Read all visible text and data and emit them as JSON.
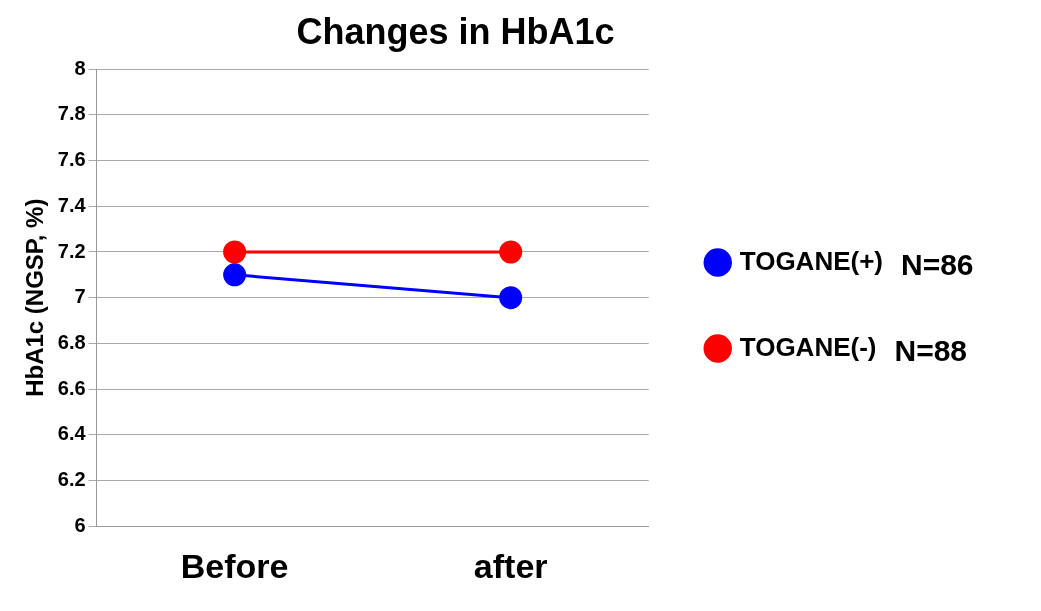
{
  "chart_data": {
    "type": "line",
    "title": "Changes in HbA1c",
    "ylabel": "HbA1c (NGSP, %)",
    "categories": [
      "Before",
      "after"
    ],
    "series": [
      {
        "name": "TOGANE(+)",
        "color": "#0000ff",
        "values": [
          7.1,
          7.0
        ]
      },
      {
        "name": "TOGANE(-)",
        "color": "#ff0000",
        "values": [
          7.2,
          7.2
        ]
      }
    ],
    "ylim": [
      6,
      8
    ],
    "yticks": [
      6,
      6.2,
      6.4,
      6.6,
      6.8,
      7,
      7.2,
      7.4,
      7.6,
      7.8,
      8
    ],
    "grid": "y",
    "legend": "right",
    "marker": "circle",
    "line_style": "solid",
    "annotations": [
      "N=86",
      "N=88"
    ]
  }
}
